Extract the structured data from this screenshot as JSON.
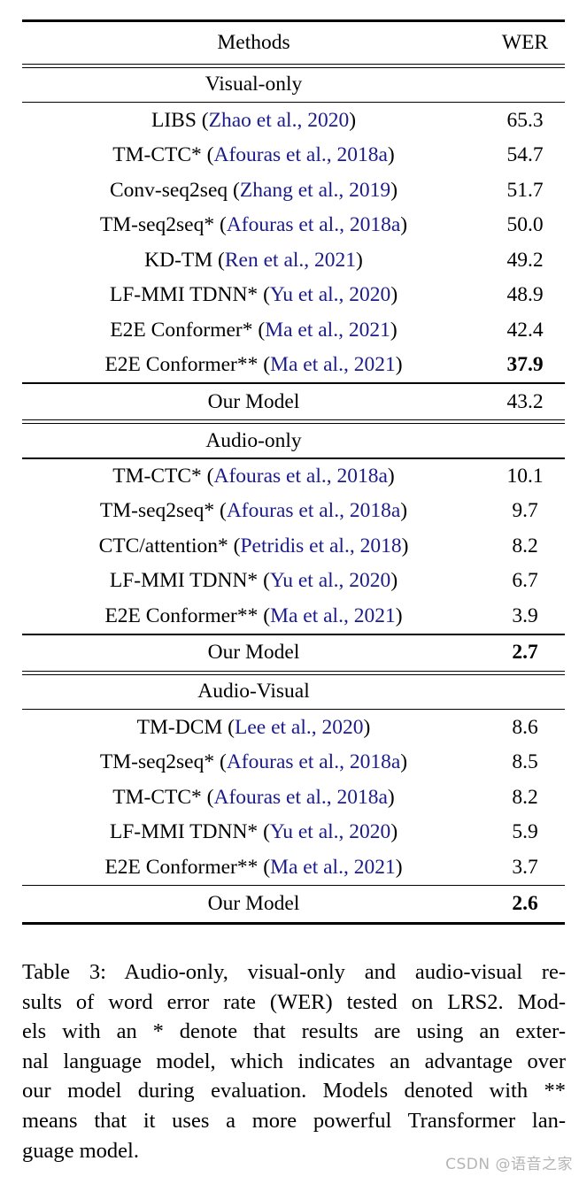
{
  "colors": {
    "citation": "#1b1b8a",
    "text": "#000000",
    "rule": "#000000",
    "watermark": "#b5b5b5"
  },
  "table": {
    "header": {
      "methods": "Methods",
      "wer": "WER"
    },
    "sections": [
      {
        "title": "Visual-only",
        "rows": [
          {
            "method": "LIBS",
            "citation": "Zhao et al., 2020",
            "wer": "65.3",
            "bold": false
          },
          {
            "method": "TM-CTC*",
            "citation": "Afouras et al., 2018a",
            "wer": "54.7",
            "bold": false
          },
          {
            "method": "Conv-seq2seq",
            "citation": "Zhang et al., 2019",
            "wer": "51.7",
            "bold": false
          },
          {
            "method": "TM-seq2seq*",
            "citation": "Afouras et al., 2018a",
            "wer": "50.0",
            "bold": false
          },
          {
            "method": "KD-TM",
            "citation": "Ren et al., 2021",
            "wer": "49.2",
            "bold": false
          },
          {
            "method": "LF-MMI TDNN*",
            "citation": "Yu et al., 2020",
            "wer": "48.9",
            "bold": false
          },
          {
            "method": "E2E Conformer*",
            "citation": "Ma et al., 2021",
            "wer": "42.4",
            "bold": false
          },
          {
            "method": "E2E Conformer**",
            "citation": "Ma et al., 2021",
            "wer": "37.9",
            "bold": true
          }
        ],
        "our_model": {
          "label": "Our Model",
          "wer": "43.2",
          "bold": false
        }
      },
      {
        "title": "Audio-only",
        "rows": [
          {
            "method": "TM-CTC*",
            "citation": "Afouras et al., 2018a",
            "wer": "10.1",
            "bold": false
          },
          {
            "method": "TM-seq2seq*",
            "citation": "Afouras et al., 2018a",
            "wer": "9.7",
            "bold": false
          },
          {
            "method": "CTC/attention*",
            "citation": "Petridis et al., 2018",
            "wer": "8.2",
            "bold": false
          },
          {
            "method": "LF-MMI TDNN*",
            "citation": "Yu et al., 2020",
            "wer": "6.7",
            "bold": false
          },
          {
            "method": "E2E Conformer**",
            "citation": "Ma et al., 2021",
            "wer": "3.9",
            "bold": false
          }
        ],
        "our_model": {
          "label": "Our Model",
          "wer": "2.7",
          "bold": true
        }
      },
      {
        "title": "Audio-Visual",
        "rows": [
          {
            "method": "TM-DCM",
            "citation": "Lee et al., 2020",
            "wer": "8.6",
            "bold": false
          },
          {
            "method": "TM-seq2seq*",
            "citation": "Afouras et al., 2018a",
            "wer": "8.5",
            "bold": false
          },
          {
            "method": "TM-CTC*",
            "citation": "Afouras et al., 2018a",
            "wer": "8.2",
            "bold": false
          },
          {
            "method": "LF-MMI TDNN*",
            "citation": "Yu et al., 2020",
            "wer": "5.9",
            "bold": false
          },
          {
            "method": "E2E Conformer**",
            "citation": "Ma et al., 2021",
            "wer": "3.7",
            "bold": false
          }
        ],
        "our_model": {
          "label": "Our Model",
          "wer": "2.6",
          "bold": true
        }
      }
    ]
  },
  "caption": {
    "lines": [
      "Table 3:  Audio-only, visual-only and audio-visual re-",
      "sults of word error rate (WER) tested on LRS2.  Mod-",
      "els with an * denote that results are using an exter-",
      "nal language model, which indicates an advantage over",
      "our model during evaluation.  Models denoted with **",
      "means that it uses a more powerful Transformer lan-",
      "guage model."
    ]
  },
  "watermark": "CSDN @语音之家"
}
